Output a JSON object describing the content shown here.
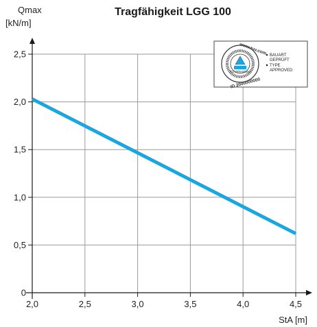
{
  "chart_data": {
    "type": "line",
    "title": "Tragfähigkeit LGG 100",
    "ylabel": "Qmax",
    "ylabel_unit": "[kN/m]",
    "xlabel": "StA [m]",
    "xlim": [
      2.0,
      4.5
    ],
    "ylim": [
      0,
      2.5
    ],
    "x_ticks": [
      "2,0",
      "2,5",
      "3,0",
      "3,5",
      "4,0",
      "4,5"
    ],
    "y_ticks": [
      "0",
      "0,5",
      "1,0",
      "1,5",
      "2,0",
      "2,5"
    ],
    "grid": true,
    "series": [
      {
        "x": [
          2.0,
          4.5
        ],
        "y": [
          2.03,
          0.62
        ],
        "color": "#1ba6e0"
      }
    ]
  },
  "badge": {
    "seal_text": "www.tuv.com",
    "seal_id": "ID 2000000000",
    "seal_logo": "TÜVRheinland",
    "items": [
      "BAUART GEPRÜFT",
      "TYPE APPROVED"
    ]
  },
  "colors": {
    "line": "#1ba6e0",
    "grid": "#9a9a9a",
    "axis": "#1a1a1a"
  }
}
